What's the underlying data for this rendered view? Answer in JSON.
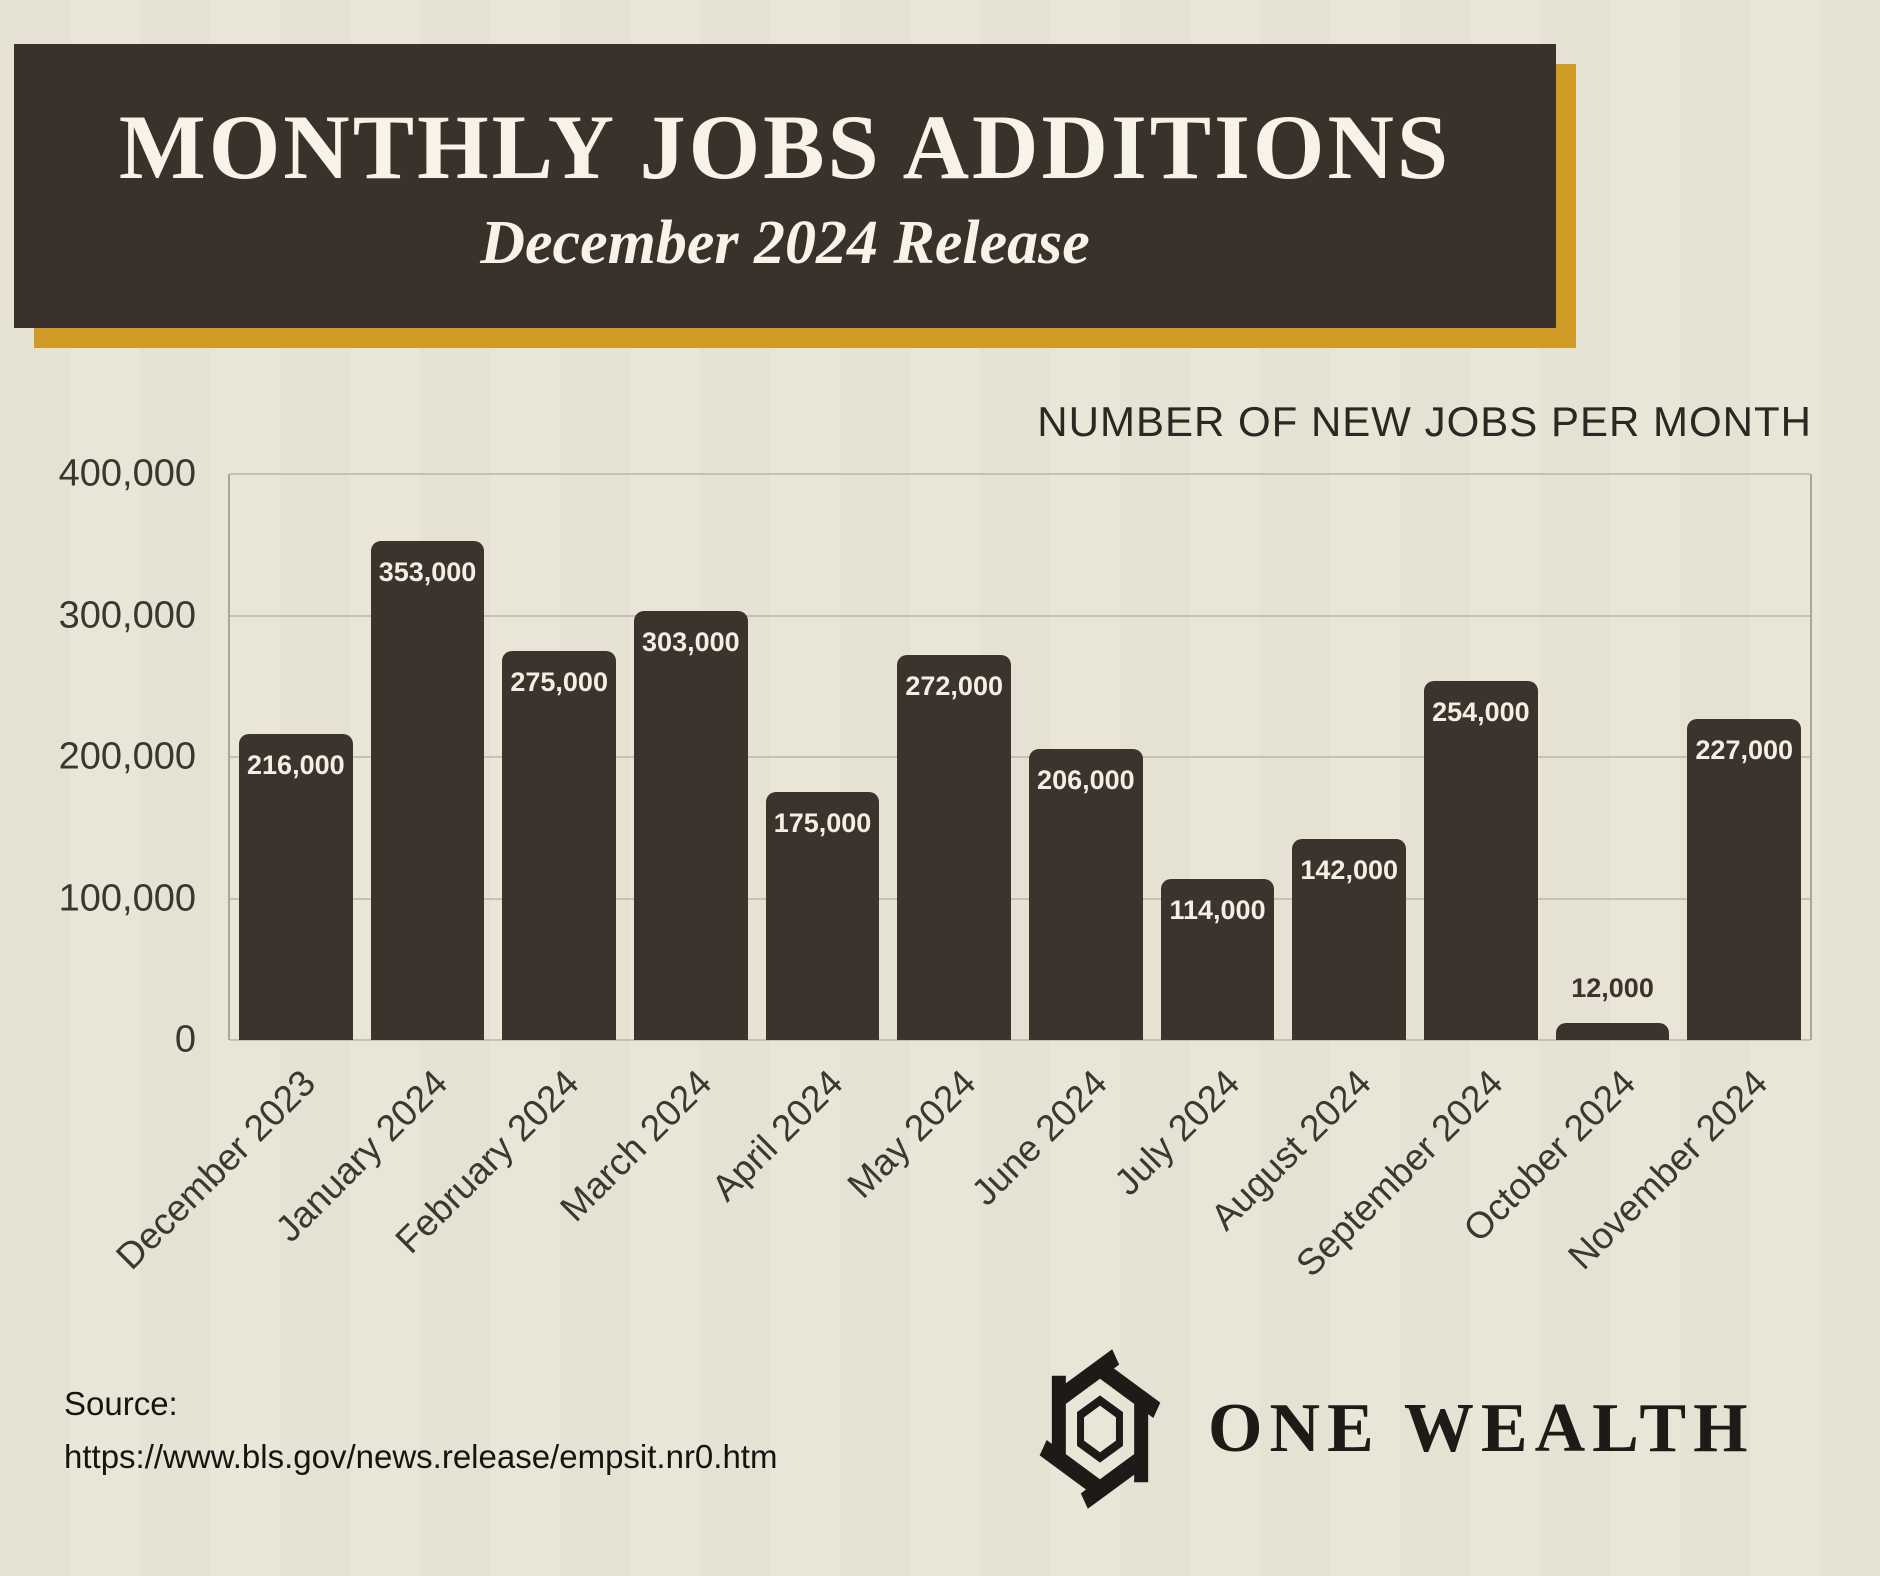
{
  "header": {
    "title": "MONTHLY JOBS ADDITIONS",
    "subtitle": "December 2024 Release"
  },
  "chart_data": {
    "type": "bar",
    "title": "NUMBER OF NEW JOBS PER MONTH",
    "categories": [
      "December 2023",
      "January 2024",
      "February 2024",
      "March 2024",
      "April 2024",
      "May 2024",
      "June 2024",
      "July 2024",
      "August 2024",
      "September 2024",
      "October 2024",
      "November 2024"
    ],
    "values": [
      216000,
      353000,
      275000,
      303000,
      175000,
      272000,
      206000,
      114000,
      142000,
      254000,
      12000,
      227000
    ],
    "value_labels": [
      "216,000",
      "353,000",
      "275,000",
      "303,000",
      "175,000",
      "272,000",
      "206,000",
      "114,000",
      "142,000",
      "254,000",
      "12,000",
      "227,000"
    ],
    "xlabel": "",
    "ylabel": "",
    "ylim": [
      0,
      400000
    ],
    "ytick_values": [
      0,
      100000,
      200000,
      300000,
      400000
    ],
    "ytick_labels": [
      "0",
      "100,000",
      "200,000",
      "300,000",
      "400,000"
    ],
    "grid": "horizontal",
    "legend": "none",
    "bar_color": "#3b332c",
    "label_inside_color": "#f2efe4",
    "label_outside_color": "#3b332c"
  },
  "footer": {
    "source_label": "Source:",
    "source_url": "https://www.bls.gov/news.release/empsit.nr0.htm",
    "brand_name": "ONE WEALTH"
  },
  "colors": {
    "background": "#e9e6d7",
    "header_bg": "#3a312b",
    "header_text": "#f7f3e8",
    "accent_gold": "#cf9b25",
    "grid_line": "#c6c2b3",
    "axis_text": "#3a3731"
  }
}
